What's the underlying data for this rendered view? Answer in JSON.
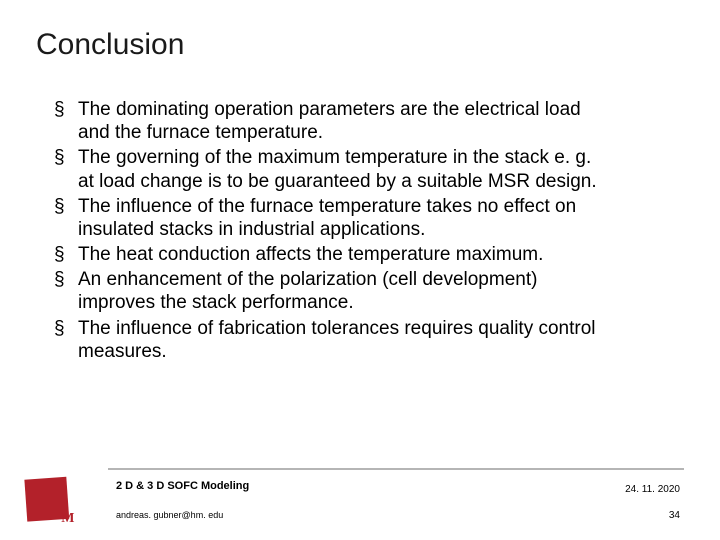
{
  "title": "Conclusion",
  "bullets": [
    "The dominating operation parameters are the electrical load and the furnace temperature.",
    "The governing of the maximum temperature in the stack e. g. at load change is to be guaranteed  by a suitable MSR design.",
    "The influence of the furnace temperature takes no effect on insulated stacks in  industrial applications.",
    "The heat conduction affects the temperature maximum.",
    "An enhancement of the polarization (cell development) improves the stack performance.",
    "The influence of fabrication tolerances requires quality control measures."
  ],
  "footer": {
    "subject": "2 D & 3 D SOFC Modeling",
    "email": "andreas. gubner@hm. edu",
    "date": "24. 11. 2020",
    "page": "34"
  },
  "colors": {
    "brand_red": "#b3212a",
    "footer_line": "#b5b5b5",
    "text": "#000000",
    "background": "#ffffff"
  }
}
